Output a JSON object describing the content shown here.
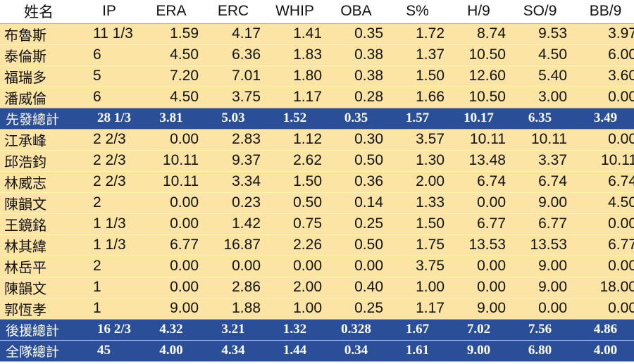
{
  "columns": [
    "姓名",
    "IP",
    "ERA",
    "ERC",
    "WHIP",
    "OBA",
    "S%",
    "H/9",
    "SO/9",
    "BB/9"
  ],
  "rows": [
    {
      "type": "player",
      "cells": [
        "布魯斯",
        "11 1/3",
        "1.59",
        "4.17",
        "1.41",
        "0.35",
        "1.72",
        "8.74",
        "9.53",
        "3.97"
      ]
    },
    {
      "type": "player",
      "cells": [
        "泰倫斯",
        "6",
        "4.50",
        "6.36",
        "1.83",
        "0.38",
        "1.37",
        "10.50",
        "4.50",
        "6.00"
      ]
    },
    {
      "type": "player",
      "cells": [
        "福瑞多",
        "5",
        "7.20",
        "7.01",
        "1.80",
        "0.38",
        "1.50",
        "12.60",
        "5.40",
        "3.60"
      ]
    },
    {
      "type": "player",
      "cells": [
        "潘威倫",
        "6",
        "4.50",
        "3.75",
        "1.17",
        "0.28",
        "1.66",
        "10.50",
        "3.00",
        "0.00"
      ]
    },
    {
      "type": "total",
      "cells": [
        "先發總計",
        "28 1/3",
        "3.81",
        "5.03",
        "1.52",
        "0.35",
        "1.57",
        "10.17",
        "6.35",
        "3.49"
      ]
    },
    {
      "type": "player",
      "cells": [
        "江承峰",
        "2 2/3",
        "0.00",
        "2.83",
        "1.12",
        "0.30",
        "3.57",
        "10.11",
        "10.11",
        "0.00"
      ]
    },
    {
      "type": "player",
      "cells": [
        "邱浩鈞",
        "2 2/3",
        "10.11",
        "9.37",
        "2.62",
        "0.50",
        "1.30",
        "13.48",
        "3.37",
        "10.11"
      ]
    },
    {
      "type": "player",
      "cells": [
        "林威志",
        "2 2/3",
        "10.11",
        "3.34",
        "1.50",
        "0.36",
        "2.00",
        "6.74",
        "6.74",
        "6.74"
      ]
    },
    {
      "type": "player",
      "cells": [
        "陳韻文",
        "2",
        "0.00",
        "0.23",
        "0.50",
        "0.14",
        "1.33",
        "0.00",
        "9.00",
        "4.50"
      ]
    },
    {
      "type": "player",
      "cells": [
        "王鏡銘",
        "1 1/3",
        "0.00",
        "1.42",
        "0.75",
        "0.25",
        "1.50",
        "6.77",
        "6.77",
        "0.00"
      ]
    },
    {
      "type": "player",
      "cells": [
        "林其緯",
        "1 1/3",
        "6.77",
        "16.87",
        "2.26",
        "0.50",
        "1.75",
        "13.53",
        "13.53",
        "6.77"
      ]
    },
    {
      "type": "player",
      "cells": [
        "林岳平",
        "2",
        "0.00",
        "0.00",
        "0.00",
        "0.00",
        "3.75",
        "0.00",
        "9.00",
        "0.00"
      ]
    },
    {
      "type": "player",
      "cells": [
        "陳韻文",
        "1",
        "0.00",
        "2.86",
        "2.00",
        "0.40",
        "1.00",
        "0.00",
        "9.00",
        "18.00"
      ]
    },
    {
      "type": "player",
      "cells": [
        "郭恆孝",
        "1",
        "9.00",
        "1.88",
        "1.00",
        "0.25",
        "1.17",
        "9.00",
        "0.00",
        "0.00"
      ]
    },
    {
      "type": "total",
      "cells": [
        "後援總計",
        "16 2/3",
        "4.32",
        "3.21",
        "1.32",
        "0.328",
        "1.67",
        "7.02",
        "7.56",
        "4.86"
      ]
    },
    {
      "type": "total",
      "cells": [
        "全隊總計",
        "45",
        "4.00",
        "4.34",
        "1.44",
        "0.34",
        "1.61",
        "9.00",
        "6.80",
        "4.00"
      ]
    }
  ]
}
